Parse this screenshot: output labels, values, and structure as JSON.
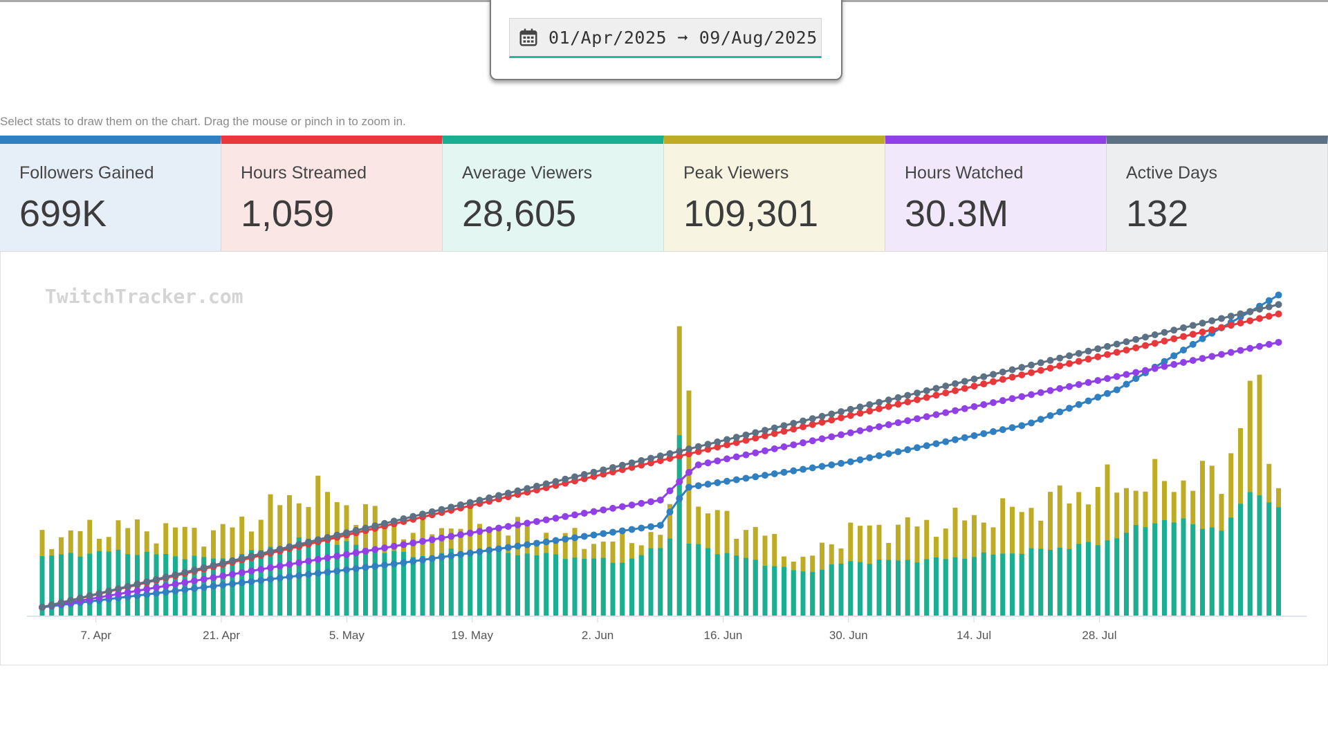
{
  "date_range": {
    "text": "01/Apr/2025 ➞ 09/Aug/2025"
  },
  "hint": "Select stats to draw them on the chart. Drag the mouse or pinch in to zoom in.",
  "watermark": "TwitchTracker.com",
  "cards": [
    {
      "label": "Followers Gained",
      "value": "699K",
      "color": "#2f7fc1",
      "bg": "#e6eff7"
    },
    {
      "label": "Hours Streamed",
      "value": "1,059",
      "color": "#e8383b",
      "bg": "#fbe6e6"
    },
    {
      "label": "Average Viewers",
      "value": "28,605",
      "color": "#1aae92",
      "bg": "#e3f6f2"
    },
    {
      "label": "Peak Viewers",
      "value": "109,301",
      "color": "#bfac26",
      "bg": "#f7f5e2"
    },
    {
      "label": "Hours Watched",
      "value": "30.3M",
      "color": "#9040e6",
      "bg": "#f1e9fb"
    },
    {
      "label": "Active Days",
      "value": "132",
      "color": "#5c7183",
      "bg": "#eceef0"
    }
  ],
  "chart_data": {
    "type": "bar+line",
    "x_range": [
      "2025-04-01",
      "2025-08-09"
    ],
    "x_tick_labels": [
      "7. Apr",
      "21. Apr",
      "5. May",
      "19. May",
      "2. Jun",
      "16. Jun",
      "30. Jun",
      "14. Jul",
      "28. Jul"
    ],
    "bar_series": [
      {
        "name": "Average Viewers",
        "color": "#1aae92",
        "anchors": [
          [
            0,
            22000
          ],
          [
            8,
            24000
          ],
          [
            20,
            21000
          ],
          [
            30,
            29000
          ],
          [
            42,
            22000
          ],
          [
            46,
            24000
          ],
          [
            55,
            23000
          ],
          [
            65,
            20000
          ],
          [
            70,
            27000
          ],
          [
            71,
            73000
          ],
          [
            72,
            27000
          ],
          [
            80,
            20000
          ],
          [
            85,
            16000
          ],
          [
            90,
            20000
          ],
          [
            100,
            21000
          ],
          [
            110,
            24000
          ],
          [
            118,
            27000
          ],
          [
            125,
            36000
          ],
          [
            132,
            32000
          ],
          [
            135,
            47000
          ],
          [
            138,
            40000
          ]
        ]
      },
      {
        "name": "Peak Viewers",
        "color": "#bfac26",
        "anchors": [
          [
            0,
            29000
          ],
          [
            8,
            33000
          ],
          [
            20,
            31000
          ],
          [
            30,
            47000
          ],
          [
            42,
            30000
          ],
          [
            46,
            35000
          ],
          [
            55,
            32000
          ],
          [
            60,
            28000
          ],
          [
            65,
            28000
          ],
          [
            70,
            32000
          ],
          [
            71,
            110000
          ],
          [
            72,
            94000
          ],
          [
            73,
            40000
          ],
          [
            80,
            31000
          ],
          [
            85,
            20000
          ],
          [
            90,
            32000
          ],
          [
            100,
            34000
          ],
          [
            110,
            40000
          ],
          [
            118,
            48000
          ],
          [
            125,
            50000
          ],
          [
            132,
            52000
          ],
          [
            135,
            90000
          ],
          [
            138,
            50000
          ]
        ]
      }
    ],
    "line_series": [
      {
        "name": "Followers Gained",
        "color": "#2f7fc1",
        "anchors": [
          [
            0,
            0
          ],
          [
            20,
            0.07
          ],
          [
            40,
            0.14
          ],
          [
            69,
            0.26
          ],
          [
            72,
            0.38
          ],
          [
            90,
            0.46
          ],
          [
            110,
            0.58
          ],
          [
            120,
            0.69
          ],
          [
            130,
            0.86
          ],
          [
            135,
            0.94
          ],
          [
            138,
            0.99
          ]
        ]
      },
      {
        "name": "Hours Streamed",
        "color": "#e8383b",
        "anchors": [
          [
            0,
            0
          ],
          [
            138,
            0.93
          ]
        ]
      },
      {
        "name": "Hours Watched",
        "color": "#9040e6",
        "anchors": [
          [
            0,
            0
          ],
          [
            69,
            0.34
          ],
          [
            73,
            0.45
          ],
          [
            138,
            0.84
          ]
        ]
      },
      {
        "name": "Active Days",
        "color": "#5c7183",
        "anchors": [
          [
            0,
            0
          ],
          [
            138,
            0.96
          ]
        ]
      }
    ]
  }
}
